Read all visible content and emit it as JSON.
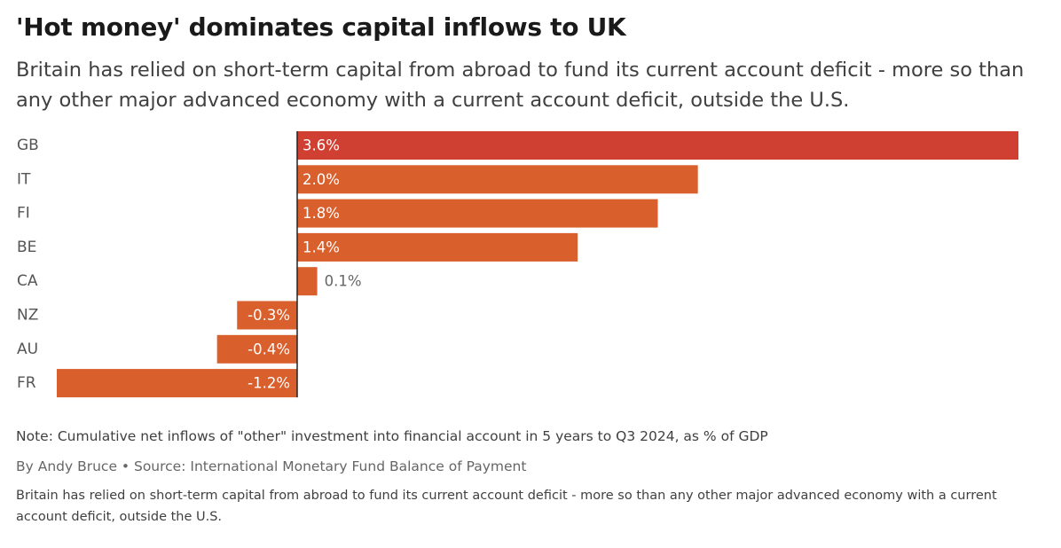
{
  "header": {
    "title": "'Hot money' dominates capital inflows to UK",
    "subtitle": "Britain has relied on short-term capital from abroad to fund its current account deficit - more so than any other major advanced economy with a current account deficit, outside the U.S."
  },
  "footer": {
    "note": "Note: Cumulative net inflows of \"other\" investment into financial account in 5 years to Q3 2024, as % of GDP",
    "byline": "By Andy Bruce • Source: International Monetary Fund Balance of Payment",
    "description": "Britain has relied on short-term capital from abroad to fund its current account deficit - more so than any other major advanced economy with a current account deficit, outside the U.S."
  },
  "colors": {
    "highlight": "#cf3f32",
    "bar": "#d95f2c",
    "label_light": "#ffffff",
    "label_dark": "#666666",
    "category_text": "#555555",
    "axis": "#222222"
  },
  "chart_data": {
    "type": "bar",
    "orientation": "horizontal",
    "categories": [
      "GB",
      "IT",
      "FI",
      "BE",
      "CA",
      "NZ",
      "AU",
      "FR"
    ],
    "values": [
      3.6,
      2.0,
      1.8,
      1.4,
      0.1,
      -0.3,
      -0.4,
      -1.2
    ],
    "labels": [
      "3.6%",
      "2.0%",
      "1.8%",
      "1.4%",
      "0.1%",
      "-0.3%",
      "-0.4%",
      "-1.2%"
    ],
    "highlight": "GB",
    "xlim": [
      -1.2,
      3.6
    ],
    "grid": false,
    "title": "",
    "xlabel": "",
    "ylabel": ""
  }
}
